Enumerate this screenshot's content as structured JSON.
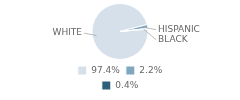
{
  "chart_data": {
    "type": "pie",
    "categories": [
      "WHITE",
      "HISPANIC",
      "BLACK"
    ],
    "values": [
      97.4,
      2.2,
      0.4
    ],
    "value_labels": [
      "97.4%",
      "2.2%",
      "0.4%"
    ],
    "colors": [
      "#d6e0ea",
      "#7fa8c0",
      "#2e5f7a"
    ],
    "legend": "bottom"
  }
}
